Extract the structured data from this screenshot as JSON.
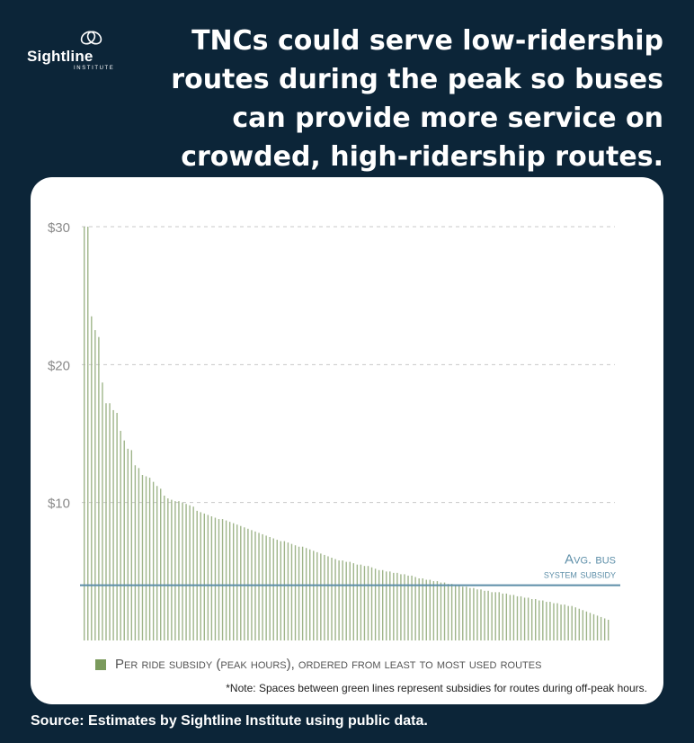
{
  "logo": {
    "name": "Sightline",
    "subtitle": "INSTITUTE"
  },
  "headline": "TNCs could serve low-ridership routes during the peak so buses can provide more service on crowded, high-ridership routes.",
  "source": "Source: Estimates by Sightline Institute using public data.",
  "colors": {
    "background": "#0c2538",
    "bars": "#9fb58a",
    "avg_line": "#5c8ea8",
    "legend_swatch": "#7a9a5c"
  },
  "chart_data": {
    "type": "bar",
    "ylim": [
      0,
      30
    ],
    "grid": "dashed horizontal",
    "yticks": [
      {
        "value": 10,
        "label": "$10"
      },
      {
        "value": 20,
        "label": "$20"
      },
      {
        "value": 30,
        "label": "$30"
      }
    ],
    "reference_line": {
      "value": 4,
      "label_line1": "Avg. bus",
      "label_line2": "system subsidy"
    },
    "legend_label": "Per ride subsidy (peak hours), ordered from least to most used routes",
    "note": "*Note: Spaces between green lines represent subsidies for routes during off-peak hours.",
    "series": [
      {
        "values": [
          30,
          30,
          23.5,
          22.5,
          22,
          18.7,
          17.2,
          17.2,
          16.7,
          16.5,
          15.2,
          14.5,
          13.9,
          13.8,
          12.7,
          12.5,
          12,
          11.9,
          11.8,
          11.5,
          11.2,
          11,
          10.5,
          10.3,
          10.2,
          10.1,
          10.1,
          10,
          9.9,
          9.8,
          9.7,
          9.4,
          9.3,
          9.2,
          9.1,
          9,
          8.9,
          8.8,
          8.8,
          8.7,
          8.6,
          8.5,
          8.4,
          8.3,
          8.2,
          8.1,
          8,
          7.9,
          7.8,
          7.7,
          7.6,
          7.5,
          7.4,
          7.3,
          7.2,
          7.2,
          7.1,
          7,
          6.9,
          6.8,
          6.8,
          6.7,
          6.6,
          6.5,
          6.4,
          6.3,
          6.2,
          6.1,
          6,
          5.9,
          5.8,
          5.8,
          5.7,
          5.7,
          5.6,
          5.5,
          5.5,
          5.4,
          5.4,
          5.3,
          5.2,
          5.1,
          5.1,
          5,
          5,
          4.9,
          4.9,
          4.8,
          4.8,
          4.7,
          4.7,
          4.6,
          4.5,
          4.5,
          4.4,
          4.4,
          4.3,
          4.3,
          4.2,
          4.2,
          4.1,
          4.1,
          4,
          4,
          3.9,
          3.9,
          3.8,
          3.8,
          3.7,
          3.7,
          3.6,
          3.6,
          3.5,
          3.5,
          3.5,
          3.4,
          3.4,
          3.3,
          3.3,
          3.2,
          3.2,
          3.1,
          3.1,
          3,
          3,
          2.9,
          2.9,
          2.8,
          2.8,
          2.7,
          2.7,
          2.6,
          2.6,
          2.5,
          2.5,
          2.4,
          2.3,
          2.2,
          2.1,
          2,
          1.9,
          1.8,
          1.7,
          1.6,
          1.5
        ]
      }
    ]
  }
}
